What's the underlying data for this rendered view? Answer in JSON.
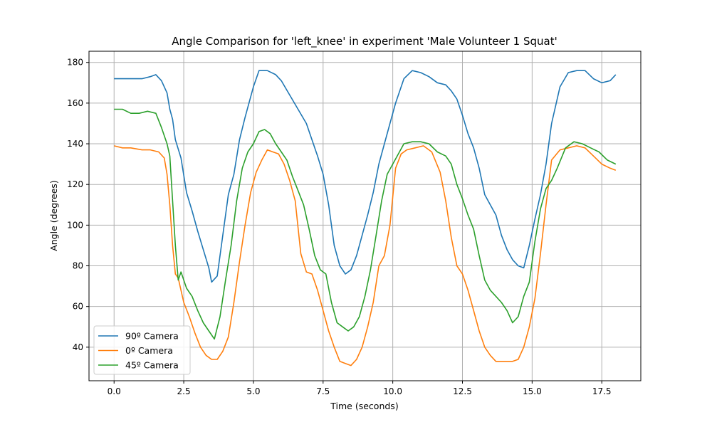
{
  "chart_data": {
    "type": "line",
    "title": "Angle Comparison for 'left_knee' in experiment 'Male Volunteer 1 Squat'",
    "xlabel": "Time (seconds)",
    "ylabel": "Angle (degrees)",
    "xlim": [
      -0.9,
      18.9
    ],
    "ylim": [
      23.5,
      185.5
    ],
    "xticks": [
      0,
      2.5,
      5,
      7.5,
      10,
      12.5,
      15,
      17.5
    ],
    "xtick_labels": [
      "0.0",
      "2.5",
      "5.0",
      "7.5",
      "10.0",
      "12.5",
      "15.0",
      "17.5"
    ],
    "yticks": [
      40,
      60,
      80,
      100,
      120,
      140,
      160,
      180
    ],
    "ytick_labels": [
      "40",
      "60",
      "80",
      "100",
      "120",
      "140",
      "160",
      "180"
    ],
    "grid": true,
    "legend_position": "lower-left",
    "series": [
      {
        "name": "90º Camera",
        "color": "#1f77b4",
        "x": [
          0,
          0.5,
          1,
          1.3,
          1.5,
          1.7,
          1.9,
          2.0,
          2.1,
          2.2,
          2.4,
          2.6,
          2.8,
          3.0,
          3.2,
          3.4,
          3.5,
          3.7,
          3.9,
          4.1,
          4.3,
          4.5,
          4.7,
          5.0,
          5.2,
          5.5,
          5.8,
          6.0,
          6.3,
          6.6,
          6.9,
          7.1,
          7.3,
          7.5,
          7.7,
          7.9,
          8.1,
          8.3,
          8.5,
          8.7,
          8.9,
          9.1,
          9.3,
          9.5,
          9.7,
          9.9,
          10.1,
          10.4,
          10.7,
          11.0,
          11.3,
          11.6,
          11.9,
          12.1,
          12.3,
          12.5,
          12.7,
          12.9,
          13.1,
          13.3,
          13.5,
          13.7,
          13.9,
          14.1,
          14.3,
          14.5,
          14.7,
          14.9,
          15.1,
          15.3,
          15.5,
          15.7,
          16.0,
          16.3,
          16.6,
          16.9,
          17.2,
          17.5,
          17.8,
          18.0
        ],
        "y": [
          172,
          172,
          172,
          173,
          174,
          171,
          165,
          157,
          152,
          142,
          133,
          116,
          107,
          97,
          88,
          79,
          72,
          75,
          95,
          115,
          125,
          142,
          153,
          168,
          176,
          176,
          174,
          171,
          164,
          157,
          150,
          142,
          134,
          125,
          110,
          90,
          80,
          76,
          78,
          85,
          95,
          105,
          116,
          130,
          140,
          150,
          160,
          172,
          176,
          175,
          173,
          170,
          169,
          166,
          162,
          154,
          145,
          138,
          128,
          115,
          110,
          105,
          95,
          88,
          83,
          80,
          79,
          90,
          103,
          115,
          130,
          150,
          168,
          175,
          176,
          176,
          172,
          170,
          171,
          174
        ]
      },
      {
        "name": "0º Camera",
        "color": "#ff7f0e",
        "x": [
          0,
          0.3,
          0.6,
          1.0,
          1.3,
          1.6,
          1.8,
          1.9,
          2.0,
          2.1,
          2.2,
          2.3,
          2.5,
          2.7,
          2.9,
          3.1,
          3.3,
          3.5,
          3.7,
          3.9,
          4.1,
          4.3,
          4.5,
          4.7,
          4.9,
          5.1,
          5.3,
          5.5,
          5.7,
          5.9,
          6.1,
          6.3,
          6.5,
          6.7,
          6.9,
          7.1,
          7.3,
          7.5,
          7.7,
          7.9,
          8.1,
          8.3,
          8.5,
          8.7,
          8.9,
          9.1,
          9.3,
          9.5,
          9.7,
          9.9,
          10.1,
          10.3,
          10.5,
          10.8,
          11.1,
          11.4,
          11.7,
          11.9,
          12.1,
          12.3,
          12.5,
          12.7,
          12.9,
          13.1,
          13.3,
          13.5,
          13.7,
          13.9,
          14.1,
          14.3,
          14.5,
          14.7,
          14.9,
          15.1,
          15.3,
          15.5,
          15.7,
          16.0,
          16.3,
          16.6,
          16.9,
          17.2,
          17.5,
          17.8,
          18.0
        ],
        "y": [
          139,
          138,
          138,
          137,
          137,
          136,
          133,
          125,
          110,
          90,
          76,
          74,
          62,
          55,
          47,
          40,
          36,
          34,
          34,
          38,
          45,
          62,
          82,
          100,
          116,
          126,
          132,
          137,
          136,
          135,
          130,
          122,
          112,
          86,
          77,
          76,
          68,
          58,
          48,
          40,
          33,
          32,
          31,
          34,
          40,
          50,
          62,
          80,
          85,
          100,
          128,
          135,
          137,
          138,
          139,
          136,
          126,
          112,
          94,
          80,
          76,
          68,
          58,
          48,
          40,
          36,
          33,
          33,
          33,
          33,
          34,
          40,
          50,
          64,
          86,
          110,
          132,
          137,
          138,
          139,
          138,
          134,
          130,
          128,
          127
        ]
      },
      {
        "name": "45º Camera",
        "color": "#2ca02c",
        "x": [
          0,
          0.3,
          0.6,
          0.9,
          1.2,
          1.5,
          1.7,
          1.9,
          2.0,
          2.1,
          2.2,
          2.3,
          2.4,
          2.6,
          2.8,
          3.0,
          3.2,
          3.4,
          3.6,
          3.8,
          4.0,
          4.2,
          4.4,
          4.6,
          4.8,
          5.0,
          5.2,
          5.4,
          5.6,
          5.8,
          6.0,
          6.2,
          6.4,
          6.6,
          6.8,
          7.0,
          7.2,
          7.4,
          7.6,
          7.8,
          8.0,
          8.2,
          8.4,
          8.6,
          8.8,
          9.0,
          9.2,
          9.4,
          9.6,
          9.8,
          10.0,
          10.2,
          10.4,
          10.7,
          11.0,
          11.3,
          11.6,
          11.9,
          12.1,
          12.3,
          12.5,
          12.7,
          12.9,
          13.1,
          13.3,
          13.5,
          13.7,
          13.9,
          14.1,
          14.3,
          14.5,
          14.7,
          14.9,
          15.1,
          15.3,
          15.5,
          15.7,
          15.9,
          16.2,
          16.5,
          16.8,
          17.1,
          17.4,
          17.7,
          18.0
        ],
        "y": [
          157,
          157,
          155,
          155,
          156,
          155,
          148,
          140,
          134,
          112,
          90,
          73,
          77,
          69,
          65,
          58,
          52,
          48,
          44,
          55,
          73,
          90,
          112,
          128,
          136,
          140,
          146,
          147,
          145,
          140,
          136,
          132,
          124,
          117,
          110,
          98,
          85,
          78,
          76,
          62,
          52,
          50,
          48,
          50,
          55,
          65,
          78,
          95,
          112,
          125,
          130,
          135,
          140,
          141,
          141,
          140,
          136,
          134,
          130,
          120,
          113,
          105,
          98,
          85,
          73,
          68,
          65,
          62,
          58,
          52,
          55,
          65,
          72,
          92,
          108,
          118,
          122,
          128,
          138,
          141,
          140,
          138,
          136,
          132,
          130
        ]
      }
    ]
  }
}
